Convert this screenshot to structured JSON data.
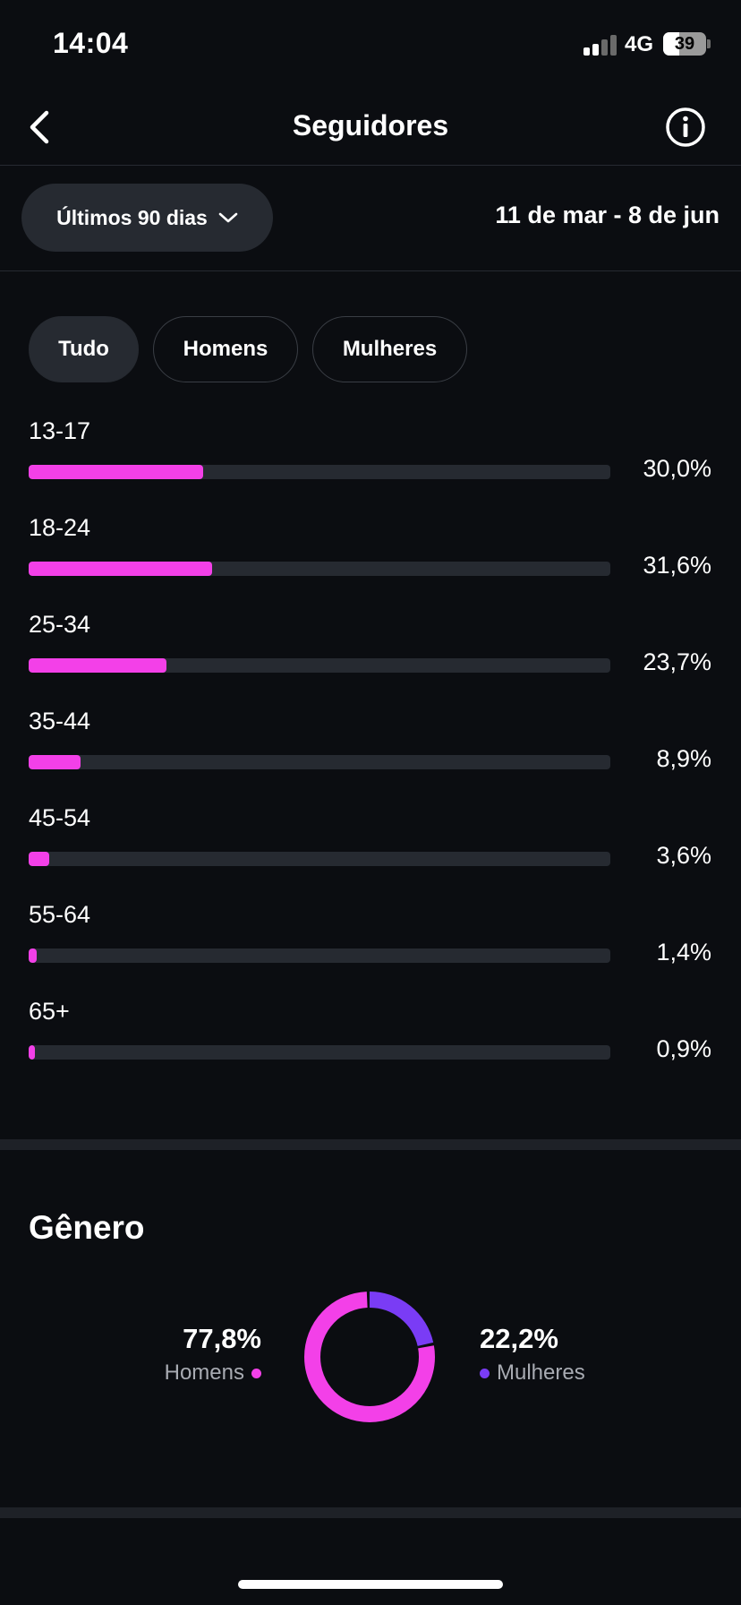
{
  "status_bar": {
    "time": "14:04",
    "network": "4G",
    "battery": "39"
  },
  "nav": {
    "title": "Seguidores",
    "back_icon": "chevron-left-icon",
    "info_icon": "info-icon"
  },
  "period": {
    "label": "Últimos 90 dias",
    "date_range": "11 de mar - 8 de jun"
  },
  "filters": {
    "active": "Tudo",
    "items": [
      {
        "label": "Tudo"
      },
      {
        "label": "Homens"
      },
      {
        "label": "Mulheres"
      }
    ]
  },
  "age_ranges": [
    {
      "label": "13-17",
      "percent_text": "30,0%",
      "percent": 30.0
    },
    {
      "label": "18-24",
      "percent_text": "31,6%",
      "percent": 31.6
    },
    {
      "label": "25-34",
      "percent_text": "23,7%",
      "percent": 23.7
    },
    {
      "label": "35-44",
      "percent_text": "8,9%",
      "percent": 8.9
    },
    {
      "label": "45-54",
      "percent_text": "3,6%",
      "percent": 3.6
    },
    {
      "label": "55-64",
      "percent_text": "1,4%",
      "percent": 1.4
    },
    {
      "label": "65+",
      "percent_text": "0,9%",
      "percent": 0.9
    }
  ],
  "gender": {
    "title": "Gênero",
    "men": {
      "value": "77,8%",
      "label": "Homens",
      "percent": 77.8
    },
    "women": {
      "value": "22,2%",
      "label": "Mulheres",
      "percent": 22.2
    }
  },
  "colors": {
    "accent_pink": "#f340e8",
    "accent_purple": "#7a3cf5",
    "track": "#262a31",
    "background": "#0b0d11"
  }
}
